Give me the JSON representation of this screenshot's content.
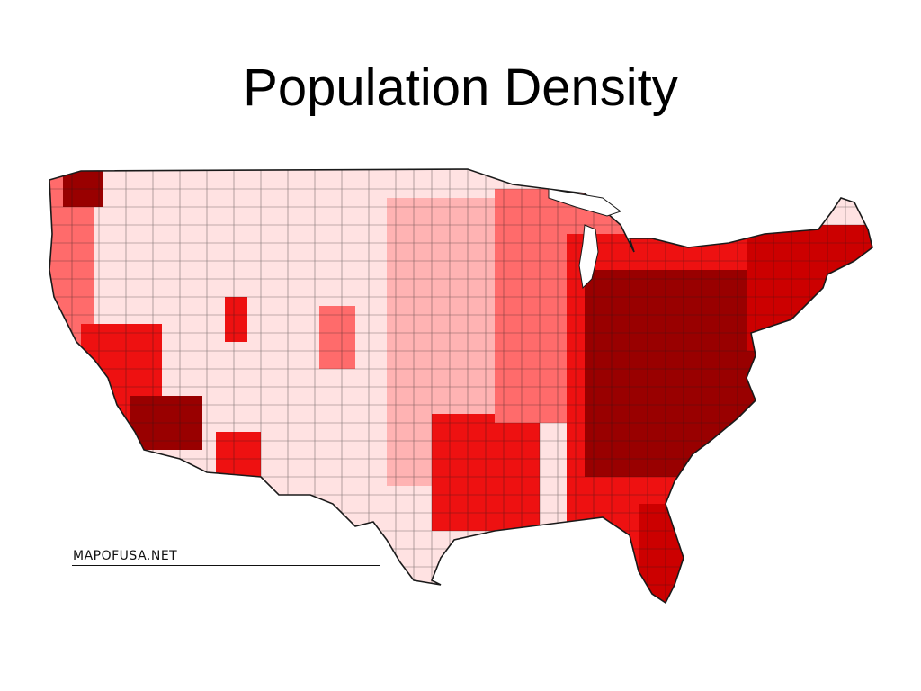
{
  "slide": {
    "title": "Population Density"
  },
  "map": {
    "subject": "United States county-level population density",
    "credit": "MAPOFUSA.NET",
    "density_colors": {
      "lowest": "#ffe2e2",
      "low": "#ffb3b3",
      "medium": "#ff6b6b",
      "high": "#ee1111",
      "highest": "#990000"
    },
    "border_color": "#1a1a1a"
  }
}
